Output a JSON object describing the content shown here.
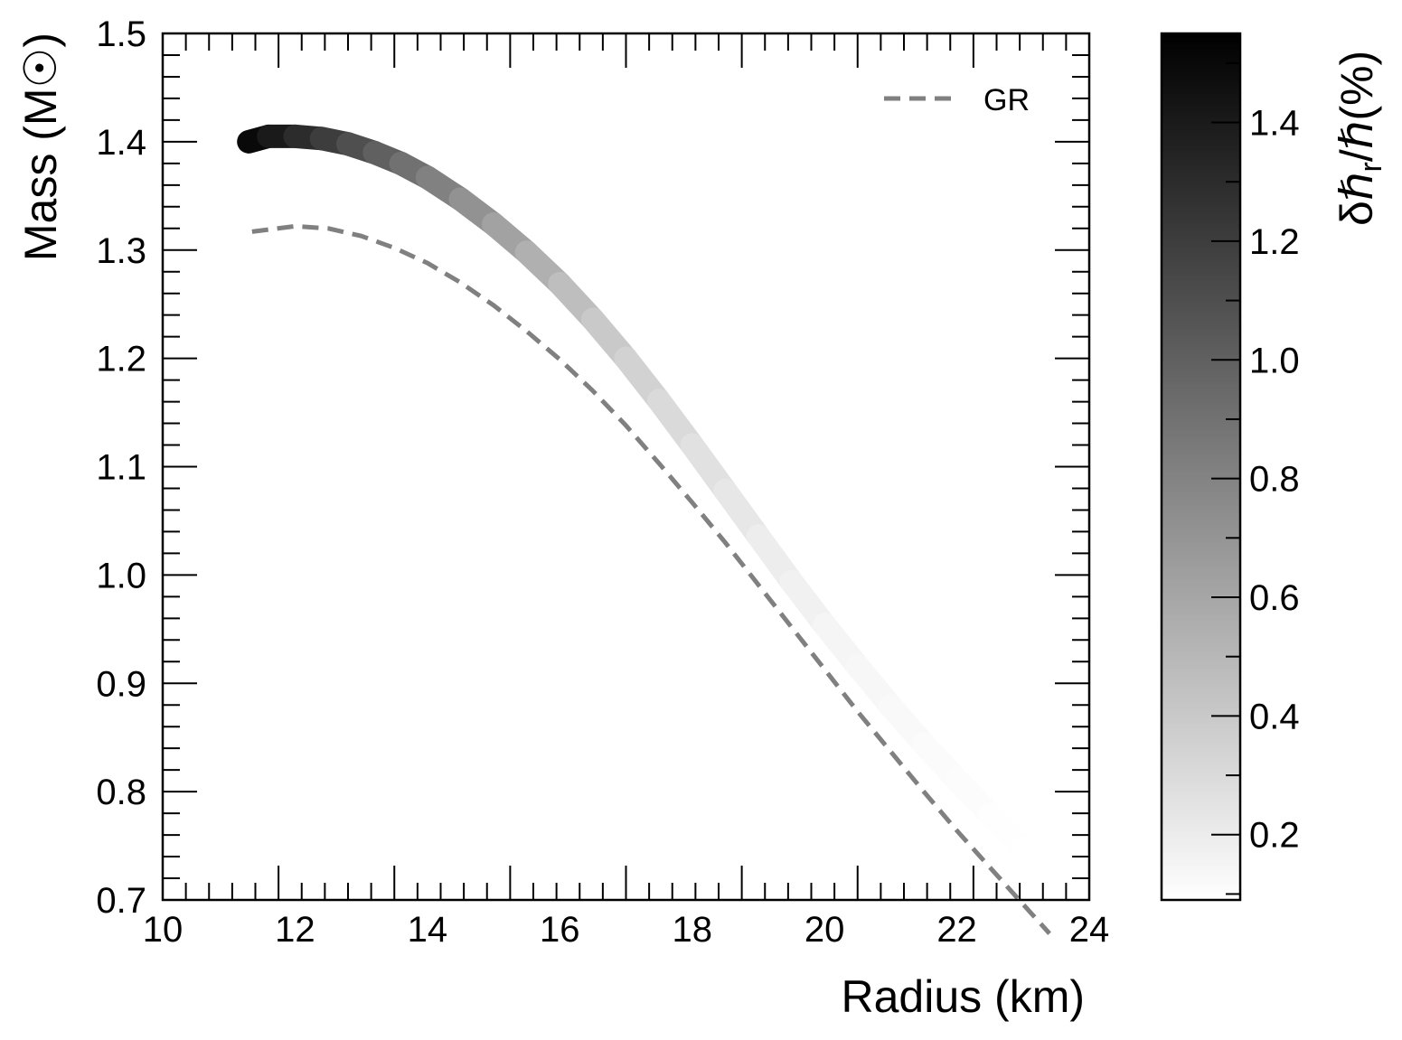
{
  "chart_data": {
    "type": "line",
    "xlabel": "Radius (km)",
    "ylabel": "Mass (M☉)",
    "xlim": [
      10,
      24
    ],
    "ylim": [
      0.7,
      1.5
    ],
    "x_ticks": [
      "10",
      "12",
      "14",
      "16",
      "18",
      "20",
      "22",
      "24"
    ],
    "y_ticks": [
      "0.7",
      "0.8",
      "0.9",
      "1.0",
      "1.1",
      "1.2",
      "1.3",
      "1.4",
      "1.5"
    ],
    "legend": {
      "position": "top-right",
      "entries": [
        "GR"
      ]
    },
    "colorbar": {
      "label": "δℏ_r/ℏ(%)",
      "label_main": "δℏ",
      "label_sub": "r",
      "label_tail": "/ℏ(%)",
      "range": [
        0.09,
        1.55
      ],
      "ticks": [
        "0.2",
        "0.4",
        "0.6",
        "0.8",
        "1.0",
        "1.2",
        "1.4"
      ],
      "colormap": "white-to-black",
      "color_low": "#ffffff",
      "color_high": "#000000"
    },
    "series": [
      {
        "name": "GR",
        "style": "dashed",
        "color": "#808080",
        "x": [
          11.35,
          12.0,
          12.5,
          13.0,
          13.5,
          14.0,
          14.5,
          15.0,
          15.5,
          16.0,
          16.5,
          17.0,
          17.5,
          18.0,
          18.5,
          19.0,
          19.5,
          20.0,
          20.5,
          21.0,
          21.5,
          22.0,
          22.5,
          23.0,
          23.4
        ],
        "y": [
          1.317,
          1.322,
          1.32,
          1.313,
          1.302,
          1.288,
          1.27,
          1.249,
          1.225,
          1.199,
          1.17,
          1.138,
          1.103,
          1.067,
          1.03,
          0.991,
          0.952,
          0.913,
          0.874,
          0.837,
          0.8,
          0.764,
          0.73,
          0.696,
          0.669
        ]
      },
      {
        "name": "",
        "style": "color-graded band",
        "x": [
          11.3,
          11.6,
          12.0,
          12.4,
          12.8,
          13.2,
          13.6,
          14.0,
          14.5,
          15.0,
          15.5,
          16.0,
          16.5,
          17.0,
          17.5,
          18.0,
          18.5,
          19.0,
          19.5,
          20.0,
          20.5,
          21.0,
          21.5,
          22.0,
          22.5,
          23.0,
          23.4
        ],
        "y": [
          1.4,
          1.405,
          1.405,
          1.403,
          1.398,
          1.39,
          1.38,
          1.367,
          1.347,
          1.324,
          1.298,
          1.269,
          1.236,
          1.2,
          1.161,
          1.12,
          1.078,
          1.036,
          0.994,
          0.954,
          0.916,
          0.879,
          0.844,
          0.811,
          0.779,
          0.748,
          0.724
        ],
        "color_values": [
          1.55,
          1.45,
          1.35,
          1.25,
          1.15,
          1.05,
          0.95,
          0.86,
          0.76,
          0.67,
          0.58,
          0.5,
          0.43,
          0.37,
          0.32,
          0.28,
          0.24,
          0.21,
          0.18,
          0.16,
          0.14,
          0.13,
          0.12,
          0.11,
          0.1,
          0.09,
          0.09
        ]
      }
    ]
  }
}
